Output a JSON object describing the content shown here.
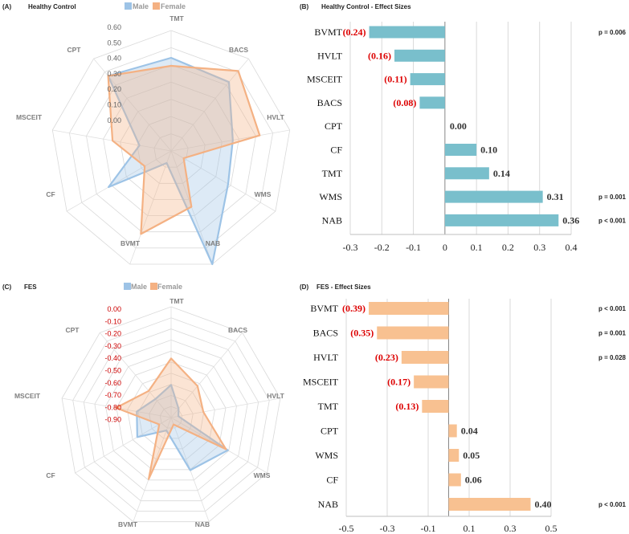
{
  "chart_data": [
    {
      "panel": "(A)",
      "type": "radar",
      "title": "Healthy Control",
      "axes": [
        "TMT",
        "BACS",
        "HVLT",
        "WMS",
        "NAB",
        "BVMT",
        "CF",
        "MSCEIT",
        "CPT"
      ],
      "tick_labels": [
        "0.60",
        "0.50",
        "0.40",
        "0.30",
        "0.20",
        "0.10",
        "0.00"
      ],
      "range": [
        -0.15,
        0.6
      ],
      "series": [
        {
          "name": "Male",
          "color": "#9dc3e6",
          "values": [
            0.43,
            0.41,
            0.24,
            0.26,
            0.6,
            -0.07,
            0.3,
            0.05,
            0.46
          ]
        },
        {
          "name": "Female",
          "color": "#f4b183",
          "values": [
            0.38,
            0.5,
            0.41,
            -0.06,
            0.22,
            0.4,
            0.04,
            0.22,
            0.46
          ]
        }
      ]
    },
    {
      "panel": "(B)",
      "type": "bar",
      "orientation": "horizontal",
      "title": "Healthy Control - Effect Sizes",
      "color": "#79bfcc",
      "categories": [
        "BVMT",
        "HVLT",
        "MSCEIT",
        "BACS",
        "CPT",
        "CF",
        "TMT",
        "WMS",
        "NAB"
      ],
      "values": [
        -0.24,
        -0.16,
        -0.11,
        -0.08,
        0.0,
        0.1,
        0.14,
        0.31,
        0.36
      ],
      "value_labels": [
        "(0.24)",
        "(0.16)",
        "(0.11)",
        "(0.08)",
        "0.00",
        "0.10",
        "0.14",
        "0.31",
        "0.36"
      ],
      "p_values": [
        "p = 0.006",
        "",
        "",
        "",
        "",
        "",
        "",
        "p = 0.001",
        "p < 0.001"
      ],
      "xlim": [
        -0.3,
        0.4
      ],
      "xticks": [
        -0.3,
        -0.2,
        -0.1,
        0,
        0.1,
        0.2,
        0.3,
        0.4
      ],
      "xtick_labels": [
        "-0.3",
        "-0.2",
        "-0.1",
        "0",
        "0.1",
        "0.2",
        "0.3",
        "0.4"
      ]
    },
    {
      "panel": "(C)",
      "type": "radar",
      "title": "FES",
      "axes": [
        "TMT",
        "BACS",
        "HVLT",
        "WMS",
        "NAB",
        "BVMT",
        "CF",
        "MSCEIT",
        "CPT"
      ],
      "tick_labels": [
        "0.00",
        "-0.10",
        "-0.20",
        "-0.30",
        "-0.40",
        "-0.50",
        "-0.60",
        "-0.70",
        "-0.80",
        "-0.90"
      ],
      "range": [
        -1.05,
        0.0
      ],
      "series": [
        {
          "name": "Male",
          "color": "#9dc3e6",
          "values": [
            -0.74,
            -0.94,
            -0.98,
            -0.43,
            -0.52,
            -0.92,
            -0.68,
            -0.72,
            -0.82
          ]
        },
        {
          "name": "Female",
          "color": "#f4b183",
          "values": [
            -0.49,
            -0.66,
            -0.74,
            -0.45,
            -0.98,
            -0.43,
            -0.92,
            -0.52,
            -0.72
          ]
        }
      ]
    },
    {
      "panel": "(D)",
      "type": "bar",
      "orientation": "horizontal",
      "title": "FES - Effect Sizes",
      "color": "#f8c191",
      "categories": [
        "BVMT",
        "BACS",
        "HVLT",
        "MSCEIT",
        "TMT",
        "CPT",
        "WMS",
        "CF",
        "NAB"
      ],
      "values": [
        -0.39,
        -0.35,
        -0.23,
        -0.17,
        -0.13,
        0.04,
        0.05,
        0.06,
        0.4
      ],
      "value_labels": [
        "(0.39)",
        "(0.35)",
        "(0.23)",
        "(0.17)",
        "(0.13)",
        "0.04",
        "0.05",
        "0.06",
        "0.40"
      ],
      "p_values": [
        "p < 0.001",
        "p = 0.001",
        "p = 0.028",
        "",
        "",
        "",
        "",
        "",
        "p < 0.001"
      ],
      "xlim": [
        -0.5,
        0.5
      ],
      "xticks": [
        -0.5,
        -0.3,
        -0.1,
        0.1,
        0.3,
        0.5
      ],
      "xtick_labels": [
        "-0.5",
        "-0.3",
        "-0.1",
        "0.1",
        "0.3",
        "0.5"
      ]
    }
  ]
}
